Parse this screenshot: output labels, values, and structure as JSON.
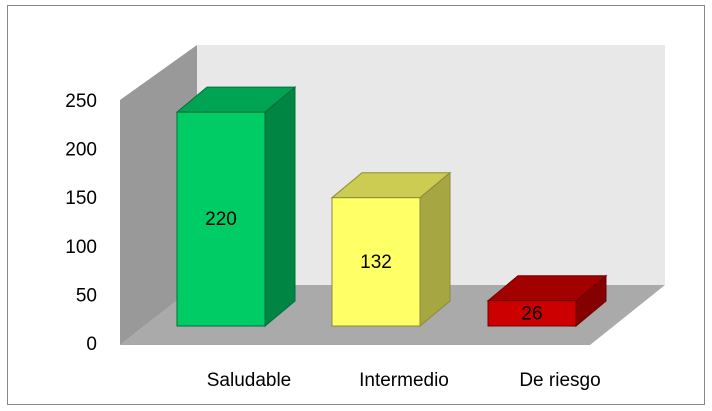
{
  "chart_data": {
    "type": "bar3d",
    "categories": [
      "Saludable",
      "Intermedio",
      "De riesgo"
    ],
    "values": [
      220,
      132,
      26
    ],
    "colors": [
      "#00cc66",
      "#ffff66",
      "#cc0000"
    ],
    "ylim": [
      0,
      250
    ],
    "yticks": [
      0,
      50,
      100,
      150,
      200,
      250
    ]
  }
}
